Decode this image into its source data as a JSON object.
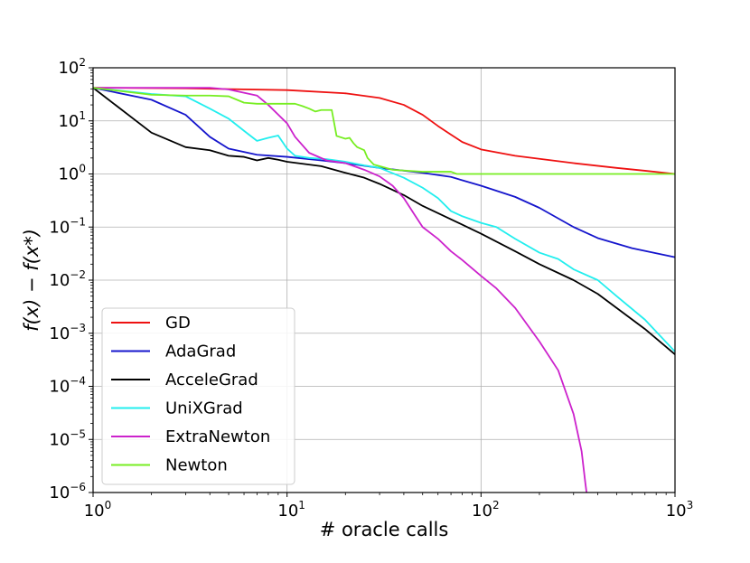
{
  "chart_data": {
    "type": "line",
    "xlabel": "# oracle calls",
    "ylabel": "f(x) − f(x*)",
    "xscale": "log",
    "yscale": "log",
    "xlim": [
      1,
      1000
    ],
    "ylim": [
      1e-06,
      100
    ],
    "x_tick_labels": [
      {
        "base": "10",
        "exp": "0"
      },
      {
        "base": "10",
        "exp": "1"
      },
      {
        "base": "10",
        "exp": "2"
      },
      {
        "base": "10",
        "exp": "3"
      }
    ],
    "y_tick_labels": [
      {
        "base": "10",
        "exp": "−6"
      },
      {
        "base": "10",
        "exp": "−5"
      },
      {
        "base": "10",
        "exp": "−4"
      },
      {
        "base": "10",
        "exp": "−3"
      },
      {
        "base": "10",
        "exp": "−2"
      },
      {
        "base": "10",
        "exp": "−1"
      },
      {
        "base": "10",
        "exp": "0"
      },
      {
        "base": "10",
        "exp": "1"
      },
      {
        "base": "10",
        "exp": "2"
      }
    ],
    "grid": true,
    "legend_position": "bottom-left",
    "series": [
      {
        "name": "GD",
        "color": "#ee1111",
        "points": [
          [
            1,
            42
          ],
          [
            3,
            41
          ],
          [
            10,
            38
          ],
          [
            20,
            33
          ],
          [
            30,
            27
          ],
          [
            40,
            20
          ],
          [
            50,
            13
          ],
          [
            60,
            8
          ],
          [
            70,
            5.5
          ],
          [
            80,
            4
          ],
          [
            100,
            2.9
          ],
          [
            150,
            2.2
          ],
          [
            300,
            1.6
          ],
          [
            500,
            1.3
          ],
          [
            700,
            1.15
          ],
          [
            1000,
            1.0
          ]
        ]
      },
      {
        "name": "AdaGrad",
        "color": "#1515cc",
        "points": [
          [
            1,
            42
          ],
          [
            2,
            25
          ],
          [
            3,
            13
          ],
          [
            4,
            5
          ],
          [
            5,
            3
          ],
          [
            7,
            2.3
          ],
          [
            10,
            2.1
          ],
          [
            15,
            1.8
          ],
          [
            20,
            1.6
          ],
          [
            30,
            1.3
          ],
          [
            50,
            1.05
          ],
          [
            70,
            0.88
          ],
          [
            100,
            0.6
          ],
          [
            150,
            0.37
          ],
          [
            200,
            0.23
          ],
          [
            300,
            0.1
          ],
          [
            400,
            0.062
          ],
          [
            600,
            0.04
          ],
          [
            1000,
            0.027
          ]
        ]
      },
      {
        "name": "AcceleGrad",
        "color": "#000000",
        "points": [
          [
            1,
            42
          ],
          [
            2,
            6
          ],
          [
            3,
            3.2
          ],
          [
            4,
            2.8
          ],
          [
            5,
            2.2
          ],
          [
            6,
            2.1
          ],
          [
            7,
            1.8
          ],
          [
            8,
            2.0
          ],
          [
            9,
            1.85
          ],
          [
            10,
            1.7
          ],
          [
            15,
            1.4
          ],
          [
            20,
            1.05
          ],
          [
            25,
            0.85
          ],
          [
            30,
            0.65
          ],
          [
            40,
            0.4
          ],
          [
            50,
            0.25
          ],
          [
            70,
            0.14
          ],
          [
            100,
            0.075
          ],
          [
            150,
            0.035
          ],
          [
            200,
            0.02
          ],
          [
            300,
            0.01
          ],
          [
            400,
            0.0055
          ],
          [
            500,
            0.003
          ],
          [
            700,
            0.0012
          ],
          [
            1000,
            0.0004
          ]
        ]
      },
      {
        "name": "UniXGrad",
        "color": "#22eeee",
        "points": [
          [
            1,
            42
          ],
          [
            2,
            32
          ],
          [
            3,
            29
          ],
          [
            4,
            17
          ],
          [
            5,
            11
          ],
          [
            6,
            6.5
          ],
          [
            7,
            4.2
          ],
          [
            8,
            4.8
          ],
          [
            9,
            5.3
          ],
          [
            10,
            3.0
          ],
          [
            11,
            2.2
          ],
          [
            13,
            2.0
          ],
          [
            16,
            1.9
          ],
          [
            20,
            1.7
          ],
          [
            25,
            1.45
          ],
          [
            30,
            1.3
          ],
          [
            40,
            0.85
          ],
          [
            50,
            0.55
          ],
          [
            60,
            0.35
          ],
          [
            70,
            0.2
          ],
          [
            80,
            0.16
          ],
          [
            100,
            0.12
          ],
          [
            120,
            0.1
          ],
          [
            150,
            0.06
          ],
          [
            200,
            0.033
          ],
          [
            250,
            0.025
          ],
          [
            300,
            0.016
          ],
          [
            400,
            0.01
          ],
          [
            500,
            0.005
          ],
          [
            700,
            0.0018
          ],
          [
            1000,
            0.00045
          ]
        ]
      },
      {
        "name": "ExtraNewton",
        "color": "#cc22cc",
        "points": [
          [
            1,
            42
          ],
          [
            2,
            42
          ],
          [
            3,
            42
          ],
          [
            4,
            42
          ],
          [
            5,
            39
          ],
          [
            7,
            30
          ],
          [
            8,
            20
          ],
          [
            10,
            9
          ],
          [
            11,
            5
          ],
          [
            13,
            2.5
          ],
          [
            16,
            1.8
          ],
          [
            20,
            1.6
          ],
          [
            25,
            1.2
          ],
          [
            30,
            0.9
          ],
          [
            35,
            0.6
          ],
          [
            40,
            0.35
          ],
          [
            45,
            0.18
          ],
          [
            50,
            0.1
          ],
          [
            60,
            0.06
          ],
          [
            70,
            0.035
          ],
          [
            80,
            0.024
          ],
          [
            100,
            0.012
          ],
          [
            120,
            0.007
          ],
          [
            150,
            0.003
          ],
          [
            200,
            0.0007
          ],
          [
            250,
            0.0002
          ],
          [
            300,
            3e-05
          ],
          [
            330,
            6e-06
          ],
          [
            345,
            1.5e-06
          ],
          [
            350,
            1e-06
          ]
        ]
      },
      {
        "name": "Newton",
        "color": "#77ee22",
        "points": [
          [
            1,
            42
          ],
          [
            2,
            31
          ],
          [
            3,
            30
          ],
          [
            4,
            30
          ],
          [
            5,
            29
          ],
          [
            6,
            22
          ],
          [
            7,
            21
          ],
          [
            8,
            21
          ],
          [
            9,
            21
          ],
          [
            10,
            21
          ],
          [
            11,
            21
          ],
          [
            12,
            19
          ],
          [
            13,
            17
          ],
          [
            14,
            15
          ],
          [
            15,
            16
          ],
          [
            17,
            16
          ],
          [
            18,
            5.2
          ],
          [
            20,
            4.6
          ],
          [
            21,
            4.8
          ],
          [
            22,
            3.8
          ],
          [
            23,
            3.2
          ],
          [
            25,
            2.8
          ],
          [
            26,
            2.0
          ],
          [
            28,
            1.5
          ],
          [
            30,
            1.4
          ],
          [
            35,
            1.2
          ],
          [
            50,
            1.1
          ],
          [
            60,
            1.1
          ],
          [
            70,
            1.1
          ],
          [
            75,
            1.0
          ],
          [
            100,
            1.0
          ],
          [
            1000,
            1.0
          ]
        ]
      }
    ]
  }
}
